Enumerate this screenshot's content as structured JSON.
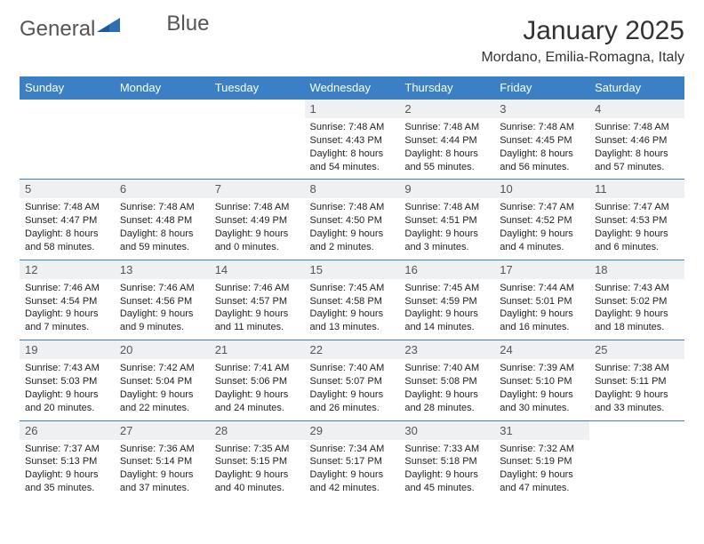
{
  "logo": {
    "text1": "General",
    "text2": "Blue"
  },
  "header": {
    "title": "January 2025",
    "subtitle": "Mordano, Emilia-Romagna, Italy"
  },
  "colors": {
    "header_bg": "#3b7fc4",
    "header_fg": "#ffffff",
    "daynum_bg": "#eef0f2",
    "cell_border": "#3b7fc4",
    "logo_accent": "#2f6fb3"
  },
  "weekdays": [
    "Sunday",
    "Monday",
    "Tuesday",
    "Wednesday",
    "Thursday",
    "Friday",
    "Saturday"
  ],
  "weeks": [
    [
      null,
      null,
      null,
      {
        "n": "1",
        "sr": "7:48 AM",
        "ss": "4:43 PM",
        "dl": "8 hours and 54 minutes."
      },
      {
        "n": "2",
        "sr": "7:48 AM",
        "ss": "4:44 PM",
        "dl": "8 hours and 55 minutes."
      },
      {
        "n": "3",
        "sr": "7:48 AM",
        "ss": "4:45 PM",
        "dl": "8 hours and 56 minutes."
      },
      {
        "n": "4",
        "sr": "7:48 AM",
        "ss": "4:46 PM",
        "dl": "8 hours and 57 minutes."
      }
    ],
    [
      {
        "n": "5",
        "sr": "7:48 AM",
        "ss": "4:47 PM",
        "dl": "8 hours and 58 minutes."
      },
      {
        "n": "6",
        "sr": "7:48 AM",
        "ss": "4:48 PM",
        "dl": "8 hours and 59 minutes."
      },
      {
        "n": "7",
        "sr": "7:48 AM",
        "ss": "4:49 PM",
        "dl": "9 hours and 0 minutes."
      },
      {
        "n": "8",
        "sr": "7:48 AM",
        "ss": "4:50 PM",
        "dl": "9 hours and 2 minutes."
      },
      {
        "n": "9",
        "sr": "7:48 AM",
        "ss": "4:51 PM",
        "dl": "9 hours and 3 minutes."
      },
      {
        "n": "10",
        "sr": "7:47 AM",
        "ss": "4:52 PM",
        "dl": "9 hours and 4 minutes."
      },
      {
        "n": "11",
        "sr": "7:47 AM",
        "ss": "4:53 PM",
        "dl": "9 hours and 6 minutes."
      }
    ],
    [
      {
        "n": "12",
        "sr": "7:46 AM",
        "ss": "4:54 PM",
        "dl": "9 hours and 7 minutes."
      },
      {
        "n": "13",
        "sr": "7:46 AM",
        "ss": "4:56 PM",
        "dl": "9 hours and 9 minutes."
      },
      {
        "n": "14",
        "sr": "7:46 AM",
        "ss": "4:57 PM",
        "dl": "9 hours and 11 minutes."
      },
      {
        "n": "15",
        "sr": "7:45 AM",
        "ss": "4:58 PM",
        "dl": "9 hours and 13 minutes."
      },
      {
        "n": "16",
        "sr": "7:45 AM",
        "ss": "4:59 PM",
        "dl": "9 hours and 14 minutes."
      },
      {
        "n": "17",
        "sr": "7:44 AM",
        "ss": "5:01 PM",
        "dl": "9 hours and 16 minutes."
      },
      {
        "n": "18",
        "sr": "7:43 AM",
        "ss": "5:02 PM",
        "dl": "9 hours and 18 minutes."
      }
    ],
    [
      {
        "n": "19",
        "sr": "7:43 AM",
        "ss": "5:03 PM",
        "dl": "9 hours and 20 minutes."
      },
      {
        "n": "20",
        "sr": "7:42 AM",
        "ss": "5:04 PM",
        "dl": "9 hours and 22 minutes."
      },
      {
        "n": "21",
        "sr": "7:41 AM",
        "ss": "5:06 PM",
        "dl": "9 hours and 24 minutes."
      },
      {
        "n": "22",
        "sr": "7:40 AM",
        "ss": "5:07 PM",
        "dl": "9 hours and 26 minutes."
      },
      {
        "n": "23",
        "sr": "7:40 AM",
        "ss": "5:08 PM",
        "dl": "9 hours and 28 minutes."
      },
      {
        "n": "24",
        "sr": "7:39 AM",
        "ss": "5:10 PM",
        "dl": "9 hours and 30 minutes."
      },
      {
        "n": "25",
        "sr": "7:38 AM",
        "ss": "5:11 PM",
        "dl": "9 hours and 33 minutes."
      }
    ],
    [
      {
        "n": "26",
        "sr": "7:37 AM",
        "ss": "5:13 PM",
        "dl": "9 hours and 35 minutes."
      },
      {
        "n": "27",
        "sr": "7:36 AM",
        "ss": "5:14 PM",
        "dl": "9 hours and 37 minutes."
      },
      {
        "n": "28",
        "sr": "7:35 AM",
        "ss": "5:15 PM",
        "dl": "9 hours and 40 minutes."
      },
      {
        "n": "29",
        "sr": "7:34 AM",
        "ss": "5:17 PM",
        "dl": "9 hours and 42 minutes."
      },
      {
        "n": "30",
        "sr": "7:33 AM",
        "ss": "5:18 PM",
        "dl": "9 hours and 45 minutes."
      },
      {
        "n": "31",
        "sr": "7:32 AM",
        "ss": "5:19 PM",
        "dl": "9 hours and 47 minutes."
      },
      null
    ]
  ],
  "labels": {
    "sunrise": "Sunrise: ",
    "sunset": "Sunset: ",
    "daylight": "Daylight: "
  }
}
